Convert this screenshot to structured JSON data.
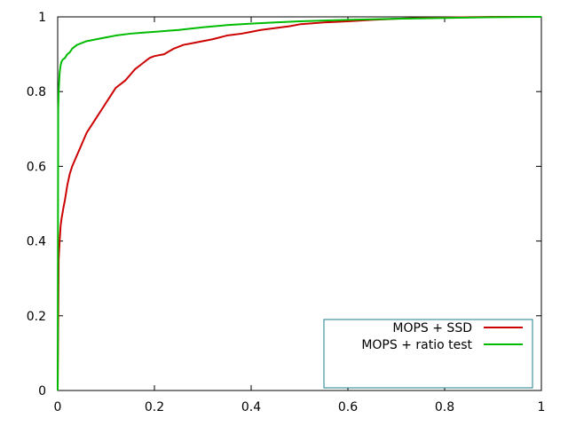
{
  "chart_data": {
    "type": "line",
    "title": "",
    "xlabel": "",
    "ylabel": "",
    "xlim": [
      0,
      1
    ],
    "ylim": [
      0,
      1
    ],
    "grid": false,
    "legend_position": "bottom-right",
    "x_ticks": [
      "0",
      "0.2",
      "0.4",
      "0.6",
      "0.8",
      "1"
    ],
    "y_ticks": [
      "0",
      "0.2",
      "0.4",
      "0.6",
      "0.8",
      "1"
    ],
    "series": [
      {
        "name": "MOPS + SSD",
        "color": "#cc0000",
        "x": [
          0,
          0.002,
          0.004,
          0.006,
          0.008,
          0.012,
          0.015,
          0.02,
          0.025,
          0.03,
          0.04,
          0.05,
          0.06,
          0.07,
          0.08,
          0.09,
          0.1,
          0.11,
          0.12,
          0.13,
          0.14,
          0.15,
          0.16,
          0.17,
          0.18,
          0.19,
          0.2,
          0.22,
          0.24,
          0.26,
          0.28,
          0.3,
          0.32,
          0.35,
          0.38,
          0.4,
          0.42,
          0.45,
          0.48,
          0.5,
          0.55,
          0.6,
          0.65,
          0.7,
          0.75,
          0.8,
          0.85,
          0.9,
          0.95,
          1.0
        ],
        "y": [
          0.0,
          0.35,
          0.4,
          0.44,
          0.46,
          0.49,
          0.51,
          0.55,
          0.58,
          0.6,
          0.63,
          0.66,
          0.69,
          0.71,
          0.73,
          0.75,
          0.77,
          0.79,
          0.81,
          0.82,
          0.83,
          0.845,
          0.86,
          0.87,
          0.88,
          0.89,
          0.895,
          0.9,
          0.915,
          0.925,
          0.93,
          0.935,
          0.94,
          0.95,
          0.955,
          0.96,
          0.965,
          0.97,
          0.975,
          0.98,
          0.985,
          0.988,
          0.992,
          0.995,
          0.997,
          0.998,
          0.999,
          1.0,
          1.0,
          1.0
        ]
      },
      {
        "name": "MOPS + ratio test",
        "color": "#00bb00",
        "x": [
          0,
          0.001,
          0.002,
          0.004,
          0.006,
          0.008,
          0.01,
          0.015,
          0.02,
          0.025,
          0.03,
          0.04,
          0.05,
          0.06,
          0.08,
          0.1,
          0.12,
          0.15,
          0.18,
          0.2,
          0.25,
          0.3,
          0.35,
          0.4,
          0.45,
          0.5,
          0.6,
          0.7,
          0.8,
          0.9,
          1.0
        ],
        "y": [
          0.0,
          0.75,
          0.8,
          0.85,
          0.87,
          0.88,
          0.885,
          0.89,
          0.9,
          0.905,
          0.915,
          0.925,
          0.93,
          0.935,
          0.94,
          0.945,
          0.95,
          0.955,
          0.958,
          0.96,
          0.965,
          0.972,
          0.978,
          0.982,
          0.985,
          0.988,
          0.992,
          0.995,
          0.997,
          0.999,
          1.0
        ]
      }
    ]
  }
}
